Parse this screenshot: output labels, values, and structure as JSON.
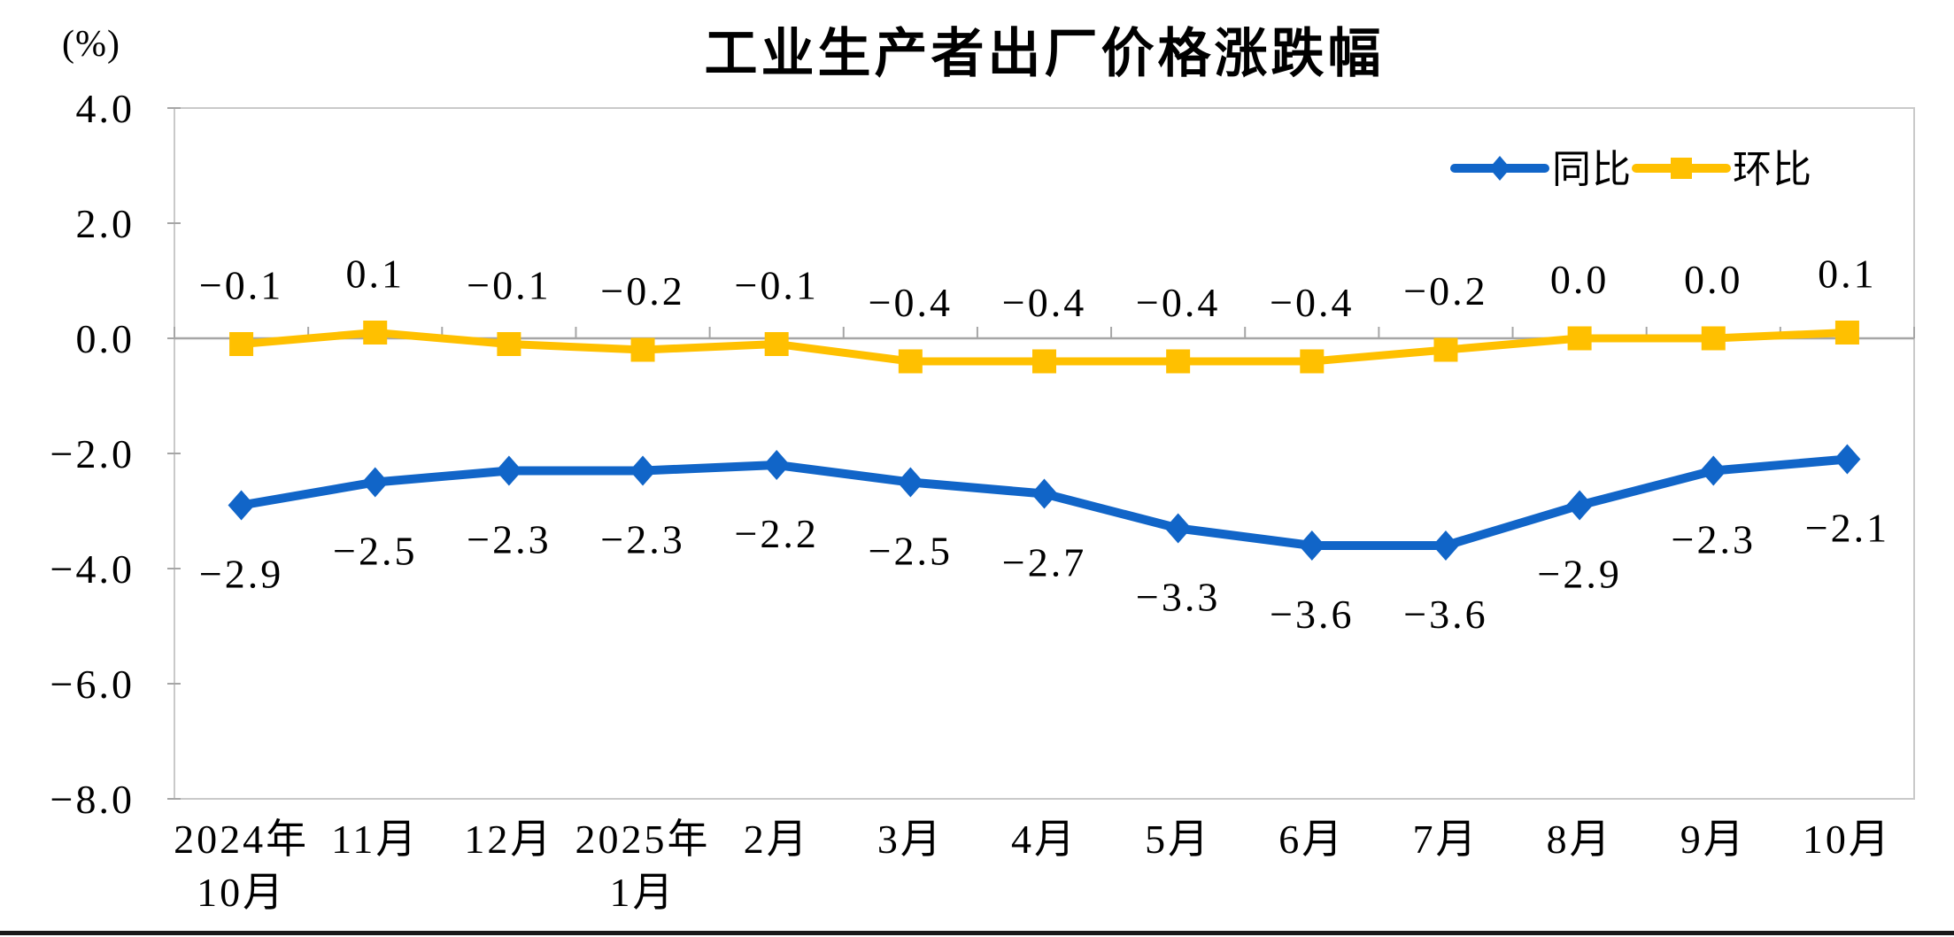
{
  "title": "工业生产者出厂价格涨跌幅",
  "unit_label": "(%)",
  "legend": {
    "position": "top-right",
    "items": [
      {
        "id": "yoy",
        "label": "同比",
        "color": "#1165C8",
        "marker": "diamond"
      },
      {
        "id": "mom",
        "label": "环比",
        "color": "#FFC000",
        "marker": "square"
      }
    ]
  },
  "chart_data": {
    "type": "line",
    "title": "工业生产者出厂价格涨跌幅",
    "unit_label": "(%)",
    "categories": [
      "2024年\n10月",
      "11月",
      "12月",
      "2025年\n1月",
      "2月",
      "3月",
      "4月",
      "5月",
      "6月",
      "7月",
      "8月",
      "9月",
      "10月"
    ],
    "series": [
      {
        "id": "yoy",
        "name": "同比",
        "color": "#1165C8",
        "marker": "diamond",
        "label_position": "below",
        "values": [
          -2.9,
          -2.5,
          -2.3,
          -2.3,
          -2.2,
          -2.5,
          -2.7,
          -3.3,
          -3.6,
          -3.6,
          -2.9,
          -2.3,
          -2.1
        ],
        "labels": [
          "-2.9",
          "-2.5",
          "-2.3",
          "-2.3",
          "-2.2",
          "-2.5",
          "-2.7",
          "-3.3",
          "-3.6",
          "-3.6",
          "-2.9",
          "-2.3",
          "-2.1"
        ]
      },
      {
        "id": "mom",
        "name": "环比",
        "color": "#FFC000",
        "marker": "square",
        "label_position": "above",
        "values": [
          -0.1,
          0.1,
          -0.1,
          -0.2,
          -0.1,
          -0.4,
          -0.4,
          -0.4,
          -0.4,
          -0.2,
          0.0,
          0.0,
          0.1
        ],
        "labels": [
          "-0.1",
          "0.1",
          "-0.1",
          "-0.2",
          "-0.1",
          "-0.4",
          "-0.4",
          "-0.4",
          "-0.4",
          "-0.2",
          "0.0",
          "0.0",
          "0.1"
        ]
      }
    ],
    "xlabel": "",
    "ylabel": "(%)",
    "ylim": [
      -8.0,
      4.0
    ],
    "ytick_step": 2.0,
    "yticks": [
      "4.0",
      "2.0",
      "0.0",
      "-2.0",
      "-4.0",
      "-6.0",
      "-8.0"
    ],
    "grid": false,
    "zero_axis_line": true,
    "legend_position": "top-right"
  },
  "colors": {
    "series_yoy": "#1165C8",
    "series_mom": "#FFC000",
    "axis_gray": "#A6A6A6",
    "border_gray": "#C9C9C9",
    "text": "#000000",
    "bottom_rule": "#191919"
  }
}
